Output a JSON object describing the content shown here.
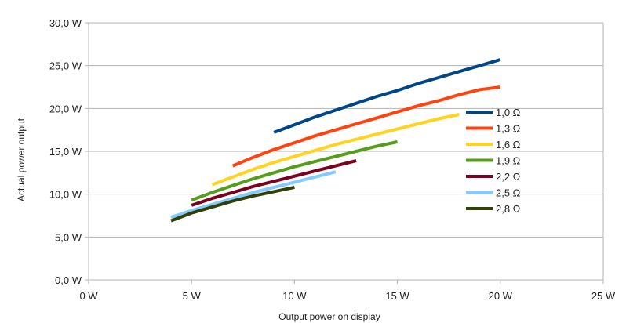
{
  "chart_data": {
    "type": "line",
    "xlabel": "Output power on display",
    "ylabel": "Actual power output",
    "xlim": [
      0,
      25
    ],
    "ylim": [
      0,
      30
    ],
    "x_ticks": [
      0,
      5,
      10,
      15,
      20,
      25
    ],
    "y_ticks": [
      0,
      5,
      10,
      15,
      20,
      25,
      30
    ],
    "x_tick_labels": [
      "0 W",
      "5 W",
      "10 W",
      "15 W",
      "20 W",
      "25 W"
    ],
    "y_tick_labels": [
      "0,0 W",
      "5,0 W",
      "10,0 W",
      "15,0 W",
      "20,0 W",
      "25,0 W",
      "30,0 W"
    ],
    "grid": "horizontal",
    "legend_position": "right",
    "series": [
      {
        "name": "1,0 Ω",
        "color": "#004586",
        "x": [
          9,
          10,
          11,
          12,
          13,
          14,
          15,
          16,
          17,
          18,
          19,
          20
        ],
        "y": [
          17.2,
          18.1,
          19.0,
          19.8,
          20.6,
          21.4,
          22.1,
          22.9,
          23.6,
          24.3,
          25.0,
          25.7
        ]
      },
      {
        "name": "1,3 Ω",
        "color": "#ff420e",
        "x": [
          7,
          8,
          9,
          10,
          11,
          12,
          13,
          14,
          15,
          16,
          17,
          18,
          19,
          20
        ],
        "y": [
          13.3,
          14.3,
          15.2,
          16.0,
          16.8,
          17.5,
          18.2,
          18.9,
          19.6,
          20.3,
          20.9,
          21.6,
          22.2,
          22.5
        ]
      },
      {
        "name": "1,6 Ω",
        "color": "#ffd320",
        "x": [
          6,
          7,
          8,
          9,
          10,
          11,
          12,
          13,
          14,
          15,
          16,
          17,
          18
        ],
        "y": [
          11.1,
          12.0,
          12.9,
          13.7,
          14.4,
          15.1,
          15.8,
          16.4,
          17.0,
          17.6,
          18.2,
          18.8,
          19.3
        ]
      },
      {
        "name": "1,9 Ω",
        "color": "#579d1c",
        "x": [
          5,
          6,
          7,
          8,
          9,
          10,
          11,
          12,
          13,
          14,
          15
        ],
        "y": [
          9.3,
          10.2,
          11.0,
          11.8,
          12.5,
          13.2,
          13.8,
          14.4,
          15.0,
          15.6,
          16.1
        ]
      },
      {
        "name": "2,2 Ω",
        "color": "#7e0021",
        "x": [
          5,
          6,
          7,
          8,
          9,
          10,
          11,
          12,
          13
        ],
        "y": [
          8.7,
          9.5,
          10.2,
          10.9,
          11.5,
          12.1,
          12.7,
          13.3,
          13.9
        ]
      },
      {
        "name": "2,5 Ω",
        "color": "#83caff",
        "x": [
          4,
          5,
          6,
          7,
          8,
          9,
          10,
          11,
          12
        ],
        "y": [
          7.3,
          8.1,
          8.8,
          9.5,
          10.2,
          10.8,
          11.4,
          12.0,
          12.6
        ]
      },
      {
        "name": "2,8 Ω",
        "color": "#314004",
        "x": [
          4,
          5,
          6,
          7,
          8,
          9,
          10
        ],
        "y": [
          6.9,
          7.8,
          8.5,
          9.2,
          9.8,
          10.3,
          10.8
        ]
      }
    ]
  }
}
